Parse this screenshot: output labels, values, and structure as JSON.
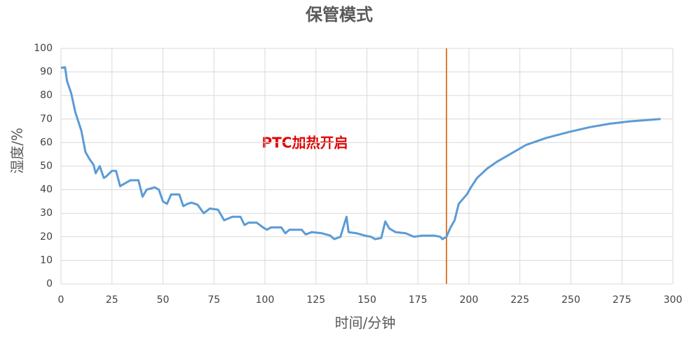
{
  "chart_data": {
    "type": "line",
    "title": "保管模式",
    "x_label": "时间/分钟",
    "y_label": "湿度/%",
    "annotation": "PTC加热开启",
    "marker_x": 189,
    "marker_color": "#e07b30",
    "x": [
      0,
      2,
      3,
      5,
      7,
      10,
      12,
      14,
      16,
      17,
      19,
      21,
      22,
      25,
      27,
      29,
      31,
      34,
      38,
      40,
      42,
      46,
      48,
      50,
      52,
      54,
      56,
      58,
      60,
      62,
      64,
      67,
      70,
      73,
      77,
      80,
      84,
      88,
      90,
      92,
      96,
      99,
      101,
      103,
      108,
      110,
      112,
      118,
      120,
      123,
      128,
      132,
      134,
      137,
      140,
      141,
      145,
      149,
      152,
      154,
      157,
      159,
      161,
      164,
      169,
      173,
      177,
      183,
      186,
      187,
      189,
      191,
      193,
      195,
      199,
      201,
      204,
      209,
      214,
      221,
      228,
      238,
      249,
      259,
      269,
      279,
      294
    ],
    "series": [
      {
        "name": "湿度",
        "color": "#5b9bd5",
        "values": [
          91.7,
          92,
          86,
          81,
          73,
          65,
          56,
          53,
          50.5,
          47,
          50,
          45,
          45.5,
          48,
          48,
          41.5,
          42.5,
          44,
          44,
          37,
          40,
          41,
          40,
          35,
          34,
          38,
          38,
          38,
          33,
          34,
          34.5,
          33.6,
          30,
          32,
          31.5,
          27,
          28.5,
          28.5,
          25,
          26,
          26,
          24,
          23,
          24,
          24,
          21.5,
          23,
          23,
          21,
          22,
          21.5,
          20.5,
          19,
          20,
          28.5,
          22,
          21.5,
          20.5,
          20,
          19,
          19.5,
          26.5,
          23.5,
          22,
          21.5,
          20,
          20.5,
          20.5,
          20,
          19,
          20,
          24,
          27,
          34,
          38,
          41,
          45,
          49,
          52,
          55.5,
          59,
          62,
          64.5,
          66.5,
          68,
          69,
          70
        ]
      }
    ],
    "xlim": [
      0,
      300
    ],
    "ylim": [
      0,
      100
    ],
    "xticks": [
      0,
      25,
      50,
      75,
      100,
      125,
      150,
      175,
      200,
      225,
      250,
      275,
      300
    ],
    "yticks": [
      0,
      10,
      20,
      30,
      40,
      50,
      60,
      70,
      80,
      90,
      100
    ],
    "grid": true
  }
}
